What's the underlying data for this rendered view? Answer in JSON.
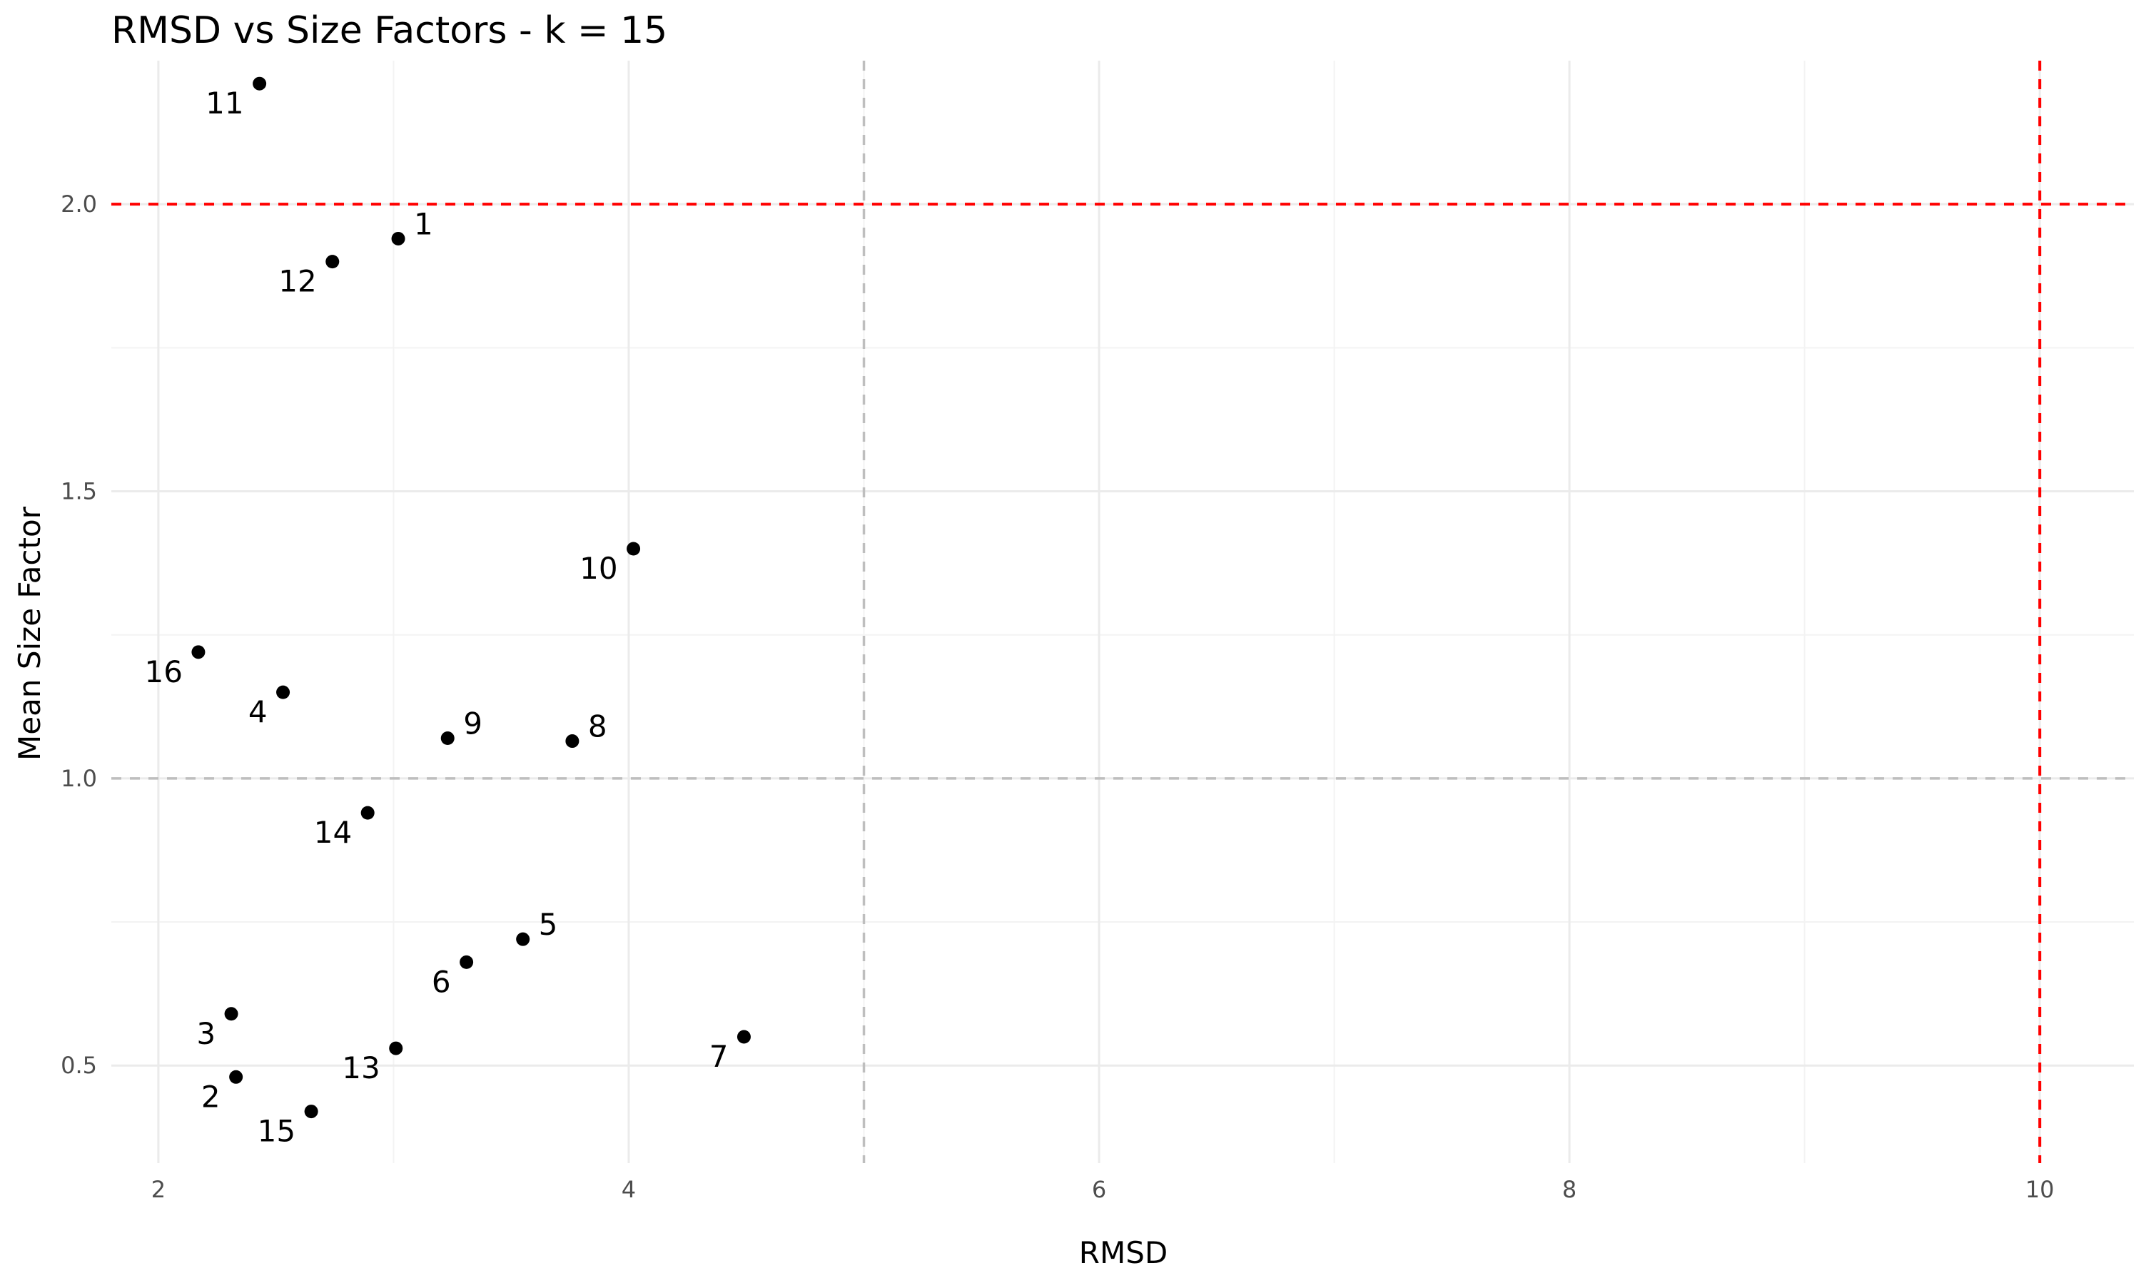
{
  "chart_data": {
    "type": "scatter",
    "title": "RMSD vs Size Factors - k = 15",
    "xlabel": "RMSD",
    "ylabel": "Mean Size Factor",
    "xlim": [
      1.8,
      10.4
    ],
    "ylim": [
      0.33,
      2.25
    ],
    "x_ticks": [
      2,
      4,
      6,
      8,
      10
    ],
    "x_tick_labels": [
      "2",
      "4",
      "6",
      "8",
      "10"
    ],
    "x_minor_ticks": [
      3,
      5,
      7,
      9
    ],
    "y_ticks": [
      0.5,
      1.0,
      1.5,
      2.0
    ],
    "y_tick_labels": [
      "0.5",
      "1.0",
      "1.5",
      "2.0"
    ],
    "y_minor_ticks": [
      0.75,
      1.25,
      1.75
    ],
    "grid": true,
    "legend": "none",
    "colors": {
      "points": "#000000",
      "threshold_line": "#ff0000",
      "reference_line": "#bebebe"
    },
    "reference_lines": [
      {
        "axis": "x",
        "value": 5,
        "color": "#bebebe",
        "style": "dashed"
      },
      {
        "axis": "y",
        "value": 1.0,
        "color": "#bebebe",
        "style": "dashed"
      },
      {
        "axis": "x",
        "value": 10,
        "color": "#ff0000",
        "style": "dashed"
      },
      {
        "axis": "y",
        "value": 2.0,
        "color": "#ff0000",
        "style": "dashed"
      }
    ],
    "points": [
      {
        "label": "1",
        "x": 3.02,
        "y": 1.94,
        "label_side": "right"
      },
      {
        "label": "2",
        "x": 2.33,
        "y": 0.48,
        "label_side": "left"
      },
      {
        "label": "3",
        "x": 2.31,
        "y": 0.59,
        "label_side": "left"
      },
      {
        "label": "4",
        "x": 2.53,
        "y": 1.15,
        "label_side": "left"
      },
      {
        "label": "5",
        "x": 3.55,
        "y": 0.72,
        "label_side": "right"
      },
      {
        "label": "6",
        "x": 3.31,
        "y": 0.68,
        "label_side": "left"
      },
      {
        "label": "7",
        "x": 4.49,
        "y": 0.55,
        "label_side": "left"
      },
      {
        "label": "8",
        "x": 3.76,
        "y": 1.065,
        "label_side": "right"
      },
      {
        "label": "9",
        "x": 3.23,
        "y": 1.07,
        "label_side": "right"
      },
      {
        "label": "10",
        "x": 4.02,
        "y": 1.4,
        "label_side": "left"
      },
      {
        "label": "11",
        "x": 2.43,
        "y": 2.21,
        "label_side": "left"
      },
      {
        "label": "12",
        "x": 2.74,
        "y": 1.9,
        "label_side": "left"
      },
      {
        "label": "13",
        "x": 3.01,
        "y": 0.53,
        "label_side": "left"
      },
      {
        "label": "14",
        "x": 2.89,
        "y": 0.94,
        "label_side": "left"
      },
      {
        "label": "15",
        "x": 2.65,
        "y": 0.42,
        "label_side": "left"
      },
      {
        "label": "16",
        "x": 2.17,
        "y": 1.22,
        "label_side": "left"
      }
    ]
  }
}
